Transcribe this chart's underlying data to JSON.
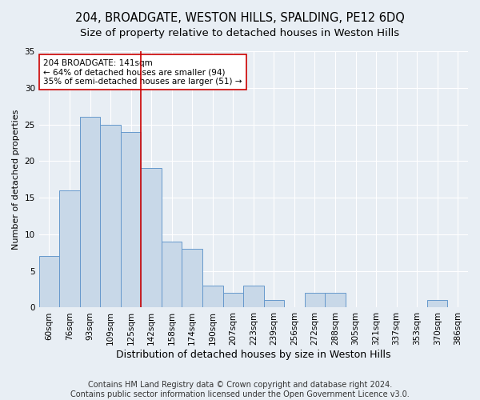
{
  "title": "204, BROADGATE, WESTON HILLS, SPALDING, PE12 6DQ",
  "subtitle": "Size of property relative to detached houses in Weston Hills",
  "xlabel": "Distribution of detached houses by size in Weston Hills",
  "ylabel": "Number of detached properties",
  "footer_line1": "Contains HM Land Registry data © Crown copyright and database right 2024.",
  "footer_line2": "Contains public sector information licensed under the Open Government Licence v3.0.",
  "categories": [
    "60sqm",
    "76sqm",
    "93sqm",
    "109sqm",
    "125sqm",
    "142sqm",
    "158sqm",
    "174sqm",
    "190sqm",
    "207sqm",
    "223sqm",
    "239sqm",
    "256sqm",
    "272sqm",
    "288sqm",
    "305sqm",
    "321sqm",
    "337sqm",
    "353sqm",
    "370sqm",
    "386sqm"
  ],
  "values": [
    7,
    16,
    26,
    25,
    24,
    19,
    9,
    8,
    3,
    2,
    3,
    1,
    0,
    2,
    2,
    0,
    0,
    0,
    0,
    1,
    0
  ],
  "bar_color": "#c8d8e8",
  "bar_edge_color": "#6699cc",
  "vline_color": "#cc0000",
  "vline_index": 5,
  "annotation_text": "204 BROADGATE: 141sqm\n← 64% of detached houses are smaller (94)\n35% of semi-detached houses are larger (51) →",
  "annotation_box_color": "#ffffff",
  "annotation_box_edge_color": "#cc0000",
  "ylim": [
    0,
    35
  ],
  "yticks": [
    0,
    5,
    10,
    15,
    20,
    25,
    30,
    35
  ],
  "background_color": "#e8eef4",
  "grid_color": "#ffffff",
  "title_fontsize": 10.5,
  "subtitle_fontsize": 9.5,
  "xlabel_fontsize": 9,
  "ylabel_fontsize": 8,
  "tick_fontsize": 7.5,
  "annotation_fontsize": 7.5,
  "footer_fontsize": 7
}
